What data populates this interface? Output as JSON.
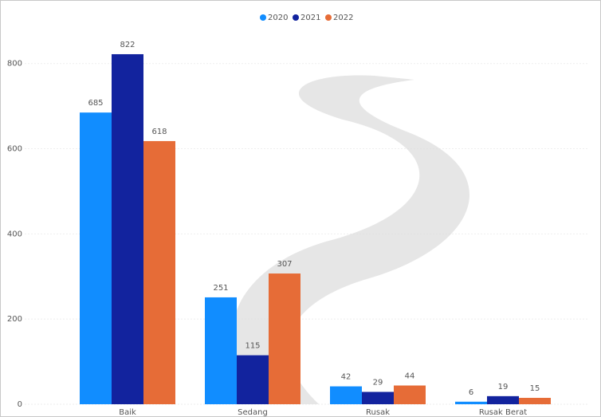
{
  "chart_data": {
    "type": "bar",
    "categories": [
      "Baik",
      "Sedang",
      "Rusak",
      "Rusak Berat"
    ],
    "series": [
      {
        "name": "2020",
        "color": "#118dff",
        "values": [
          685,
          251,
          42,
          6
        ]
      },
      {
        "name": "2021",
        "color": "#12239e",
        "values": [
          822,
          115,
          29,
          19
        ]
      },
      {
        "name": "2022",
        "color": "#e66c37",
        "values": [
          618,
          307,
          44,
          15
        ]
      }
    ],
    "ylim": [
      0,
      880
    ],
    "yticks": [
      0,
      200,
      400,
      600,
      800
    ],
    "grid": true
  }
}
